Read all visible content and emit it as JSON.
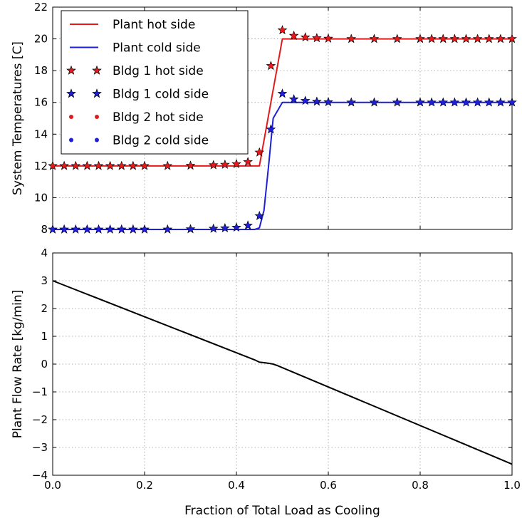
{
  "chart_data": [
    {
      "type": "line",
      "title": "",
      "xlabel": "",
      "ylabel": "System Temperatures [C]",
      "xlim": [
        0,
        1
      ],
      "ylim": [
        8,
        22
      ],
      "xticks": [
        0,
        0.2,
        0.4,
        0.6,
        0.8,
        1.0
      ],
      "yticks": [
        8,
        10,
        12,
        14,
        16,
        18,
        20,
        22
      ],
      "ytick_labels": [
        "8",
        "10",
        "12",
        "14",
        "16",
        "18",
        "20",
        "22"
      ],
      "grid": true,
      "legend_position": "top-left",
      "series": [
        {
          "name": "Plant hot side",
          "style": "line",
          "color": "#e31a1c",
          "x": [
            0,
            0.45,
            0.5,
            1.0
          ],
          "y": [
            12.0,
            12.0,
            20.0,
            20.0
          ]
        },
        {
          "name": "Plant cold side",
          "style": "line",
          "color": "#1f1fd6",
          "x": [
            0,
            0.44,
            0.45,
            0.46,
            0.47,
            0.48,
            0.5,
            1.0
          ],
          "y": [
            8.0,
            8.0,
            8.1,
            9.2,
            12.0,
            15.0,
            16.0,
            16.0
          ]
        },
        {
          "name": "Bldg 1 hot side",
          "style": "star",
          "color": "#e31a1c",
          "x": [
            0,
            0.025,
            0.05,
            0.075,
            0.1,
            0.125,
            0.15,
            0.175,
            0.2,
            0.25,
            0.3,
            0.35,
            0.375,
            0.4,
            0.425,
            0.45,
            0.475,
            0.5,
            0.525,
            0.55,
            0.575,
            0.6,
            0.65,
            0.7,
            0.75,
            0.8,
            0.825,
            0.85,
            0.875,
            0.9,
            0.925,
            0.95,
            0.975,
            1.0
          ],
          "y": [
            12.0,
            12.0,
            12.0,
            12.0,
            12.0,
            12.0,
            12.0,
            12.0,
            12.0,
            12.0,
            12.02,
            12.05,
            12.08,
            12.12,
            12.25,
            12.85,
            18.3,
            20.55,
            20.2,
            20.1,
            20.05,
            20.02,
            20.0,
            20.0,
            20.0,
            20.0,
            20.0,
            20.0,
            20.0,
            20.0,
            20.0,
            20.0,
            20.0,
            20.0
          ]
        },
        {
          "name": "Bldg 1 cold side",
          "style": "star",
          "color": "#1f1fd6",
          "x": [
            0,
            0.025,
            0.05,
            0.075,
            0.1,
            0.125,
            0.15,
            0.175,
            0.2,
            0.25,
            0.3,
            0.35,
            0.375,
            0.4,
            0.425,
            0.45,
            0.475,
            0.5,
            0.525,
            0.55,
            0.575,
            0.6,
            0.65,
            0.7,
            0.75,
            0.8,
            0.825,
            0.85,
            0.875,
            0.9,
            0.925,
            0.95,
            0.975,
            1.0
          ],
          "y": [
            8.0,
            8.0,
            8.0,
            8.0,
            8.0,
            8.0,
            8.0,
            8.0,
            8.0,
            8.0,
            8.02,
            8.05,
            8.08,
            8.12,
            8.25,
            8.85,
            14.3,
            16.55,
            16.2,
            16.1,
            16.05,
            16.02,
            16.0,
            16.0,
            16.0,
            16.0,
            16.0,
            16.0,
            16.0,
            16.0,
            16.0,
            16.0,
            16.0,
            16.0
          ]
        },
        {
          "name": "Bldg 2 hot side",
          "style": "dot",
          "color": "#e31a1c",
          "x": [
            0,
            0.025,
            0.05,
            0.075,
            0.1,
            0.125,
            0.15,
            0.175,
            0.2,
            0.25,
            0.3,
            0.35,
            0.375,
            0.4,
            0.425,
            0.45,
            0.475,
            0.5,
            0.525,
            0.55,
            0.575,
            0.6,
            0.65,
            0.7,
            0.75,
            0.8,
            0.825,
            0.85,
            0.875,
            0.9,
            0.925,
            0.95,
            0.975,
            1.0
          ],
          "y": [
            12.0,
            12.0,
            12.0,
            12.0,
            12.0,
            12.0,
            12.0,
            12.0,
            12.0,
            12.0,
            12.02,
            12.05,
            12.08,
            12.12,
            12.25,
            12.85,
            18.3,
            20.55,
            20.2,
            20.1,
            20.05,
            20.02,
            20.0,
            20.0,
            20.0,
            20.0,
            20.0,
            20.0,
            20.0,
            20.0,
            20.0,
            20.0,
            20.0,
            20.0
          ]
        },
        {
          "name": "Bldg 2 cold side",
          "style": "dot",
          "color": "#1f1fd6",
          "x": [
            0,
            0.025,
            0.05,
            0.075,
            0.1,
            0.125,
            0.15,
            0.175,
            0.2,
            0.25,
            0.3,
            0.35,
            0.375,
            0.4,
            0.425,
            0.45,
            0.475,
            0.5,
            0.525,
            0.55,
            0.575,
            0.6,
            0.65,
            0.7,
            0.75,
            0.8,
            0.825,
            0.85,
            0.875,
            0.9,
            0.925,
            0.95,
            0.975,
            1.0
          ],
          "y": [
            8.0,
            8.0,
            8.0,
            8.0,
            8.0,
            8.0,
            8.0,
            8.0,
            8.0,
            8.0,
            8.02,
            8.05,
            8.08,
            8.12,
            8.25,
            8.85,
            14.3,
            16.55,
            16.2,
            16.1,
            16.05,
            16.02,
            16.0,
            16.0,
            16.0,
            16.0,
            16.0,
            16.0,
            16.0,
            16.0,
            16.0,
            16.0,
            16.0,
            16.0
          ]
        }
      ]
    },
    {
      "type": "line",
      "title": "",
      "xlabel": "Fraction of Total Load as Cooling",
      "ylabel": "Plant Flow Rate [kg/min]",
      "xlim": [
        0,
        1
      ],
      "ylim": [
        -4,
        4
      ],
      "xticks": [
        0,
        0.2,
        0.4,
        0.6,
        0.8,
        1.0
      ],
      "xtick_labels": [
        "0.0",
        "0.2",
        "0.4",
        "0.6",
        "0.8",
        "1.0"
      ],
      "yticks": [
        -4,
        -3,
        -2,
        -1,
        0,
        1,
        2,
        3,
        4
      ],
      "ytick_labels": [
        "−4",
        "−3",
        "−2",
        "−1",
        "0",
        "1",
        "2",
        "3",
        "4"
      ],
      "grid": true,
      "series": [
        {
          "style": "line",
          "color": "#000000",
          "x": [
            0,
            0.44,
            0.45,
            0.46,
            0.47,
            0.48,
            0.49,
            1.0
          ],
          "y": [
            3.0,
            0.15,
            0.07,
            0.05,
            0.03,
            0.0,
            -0.06,
            -3.6
          ]
        }
      ]
    }
  ]
}
